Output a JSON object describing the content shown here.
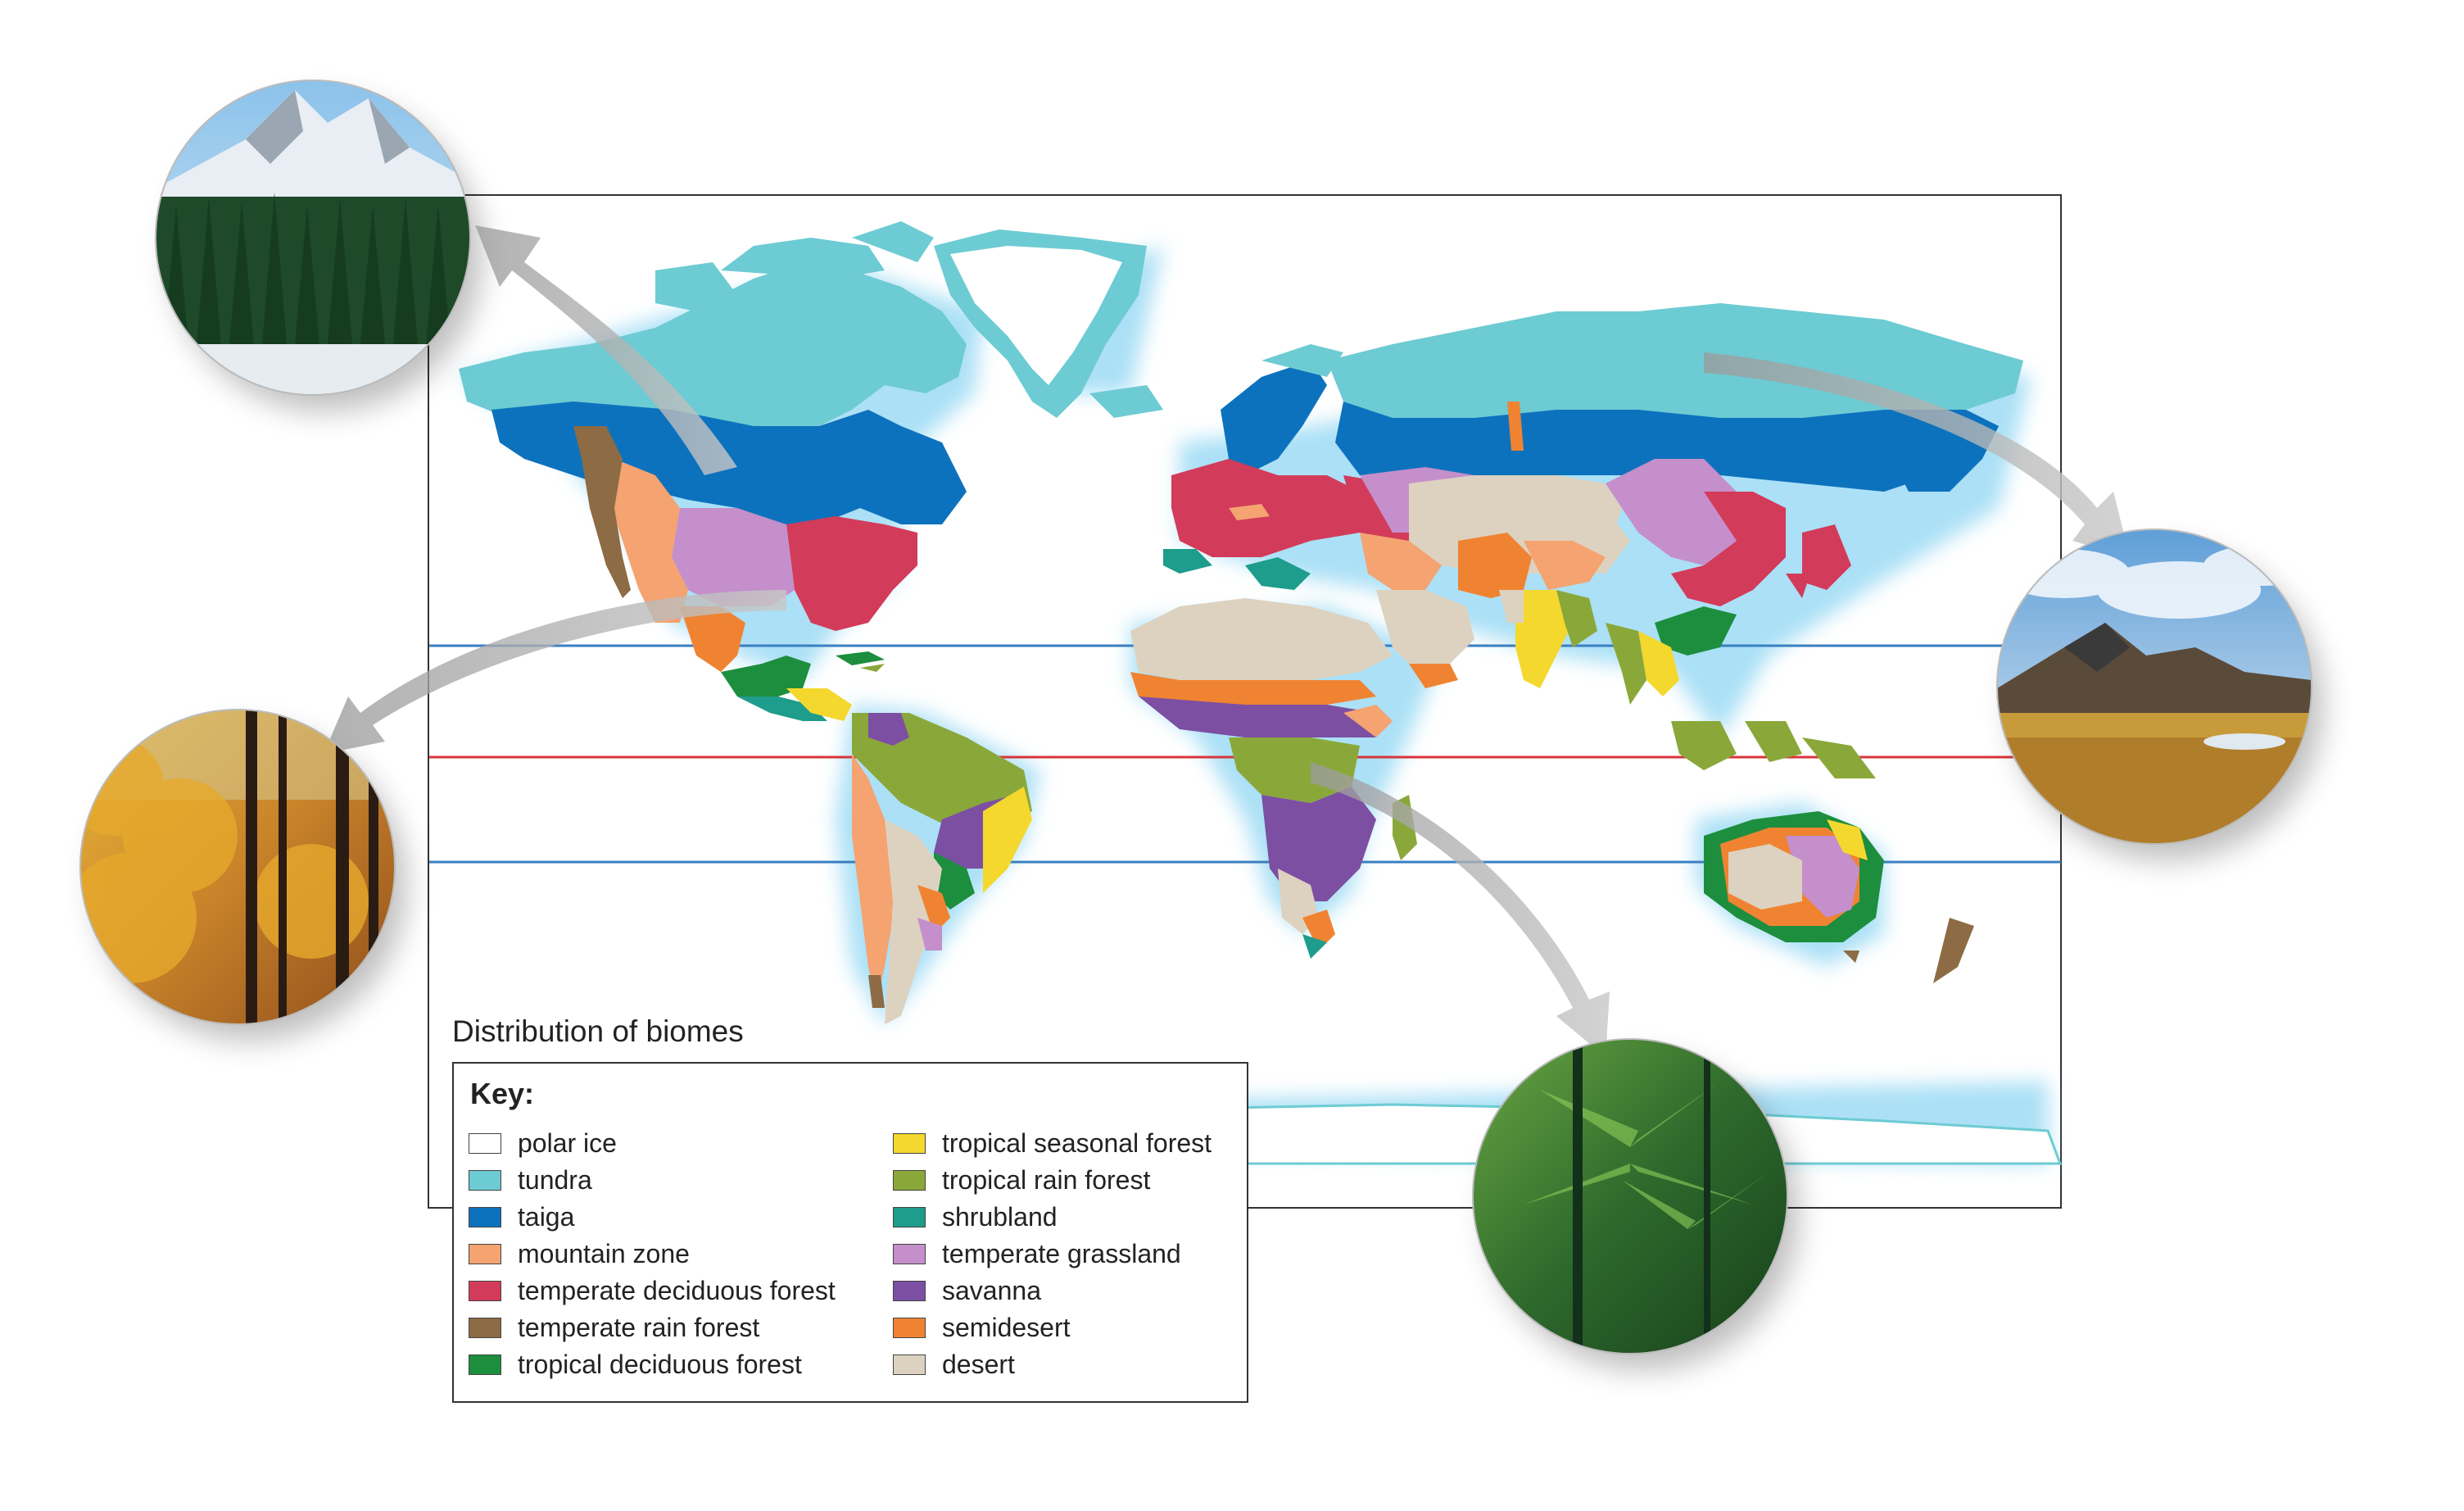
{
  "caption": "Distribution of biomes",
  "key": {
    "title": "Key:",
    "items": [
      {
        "label": "polar ice",
        "color": "#ffffff"
      },
      {
        "label": "tundra",
        "color": "#6dcbd3"
      },
      {
        "label": "taiga",
        "color": "#0d72bd"
      },
      {
        "label": "mountain zone",
        "color": "#f4a371"
      },
      {
        "label": "temperate deciduous forest",
        "color": "#d33b5a"
      },
      {
        "label": "temperate rain forest",
        "color": "#8d6b44"
      },
      {
        "label": "tropical deciduous forest",
        "color": "#1c8e3e"
      },
      {
        "label": "tropical seasonal forest",
        "color": "#f5d82e"
      },
      {
        "label": "tropical rain forest",
        "color": "#8aa83a"
      },
      {
        "label": "shrubland",
        "color": "#1e9c8c"
      },
      {
        "label": "temperate grassland",
        "color": "#c48fcb"
      },
      {
        "label": "savanna",
        "color": "#7c4fa3"
      },
      {
        "label": "semidesert",
        "color": "#f08332"
      },
      {
        "label": "desert",
        "color": "#ddd2c0"
      }
    ]
  },
  "map": {
    "latitude_lines": [
      {
        "name": "tropic-of-cancer",
        "color": "#3a7fc1"
      },
      {
        "name": "equator",
        "color": "#d8343b"
      },
      {
        "name": "tropic-of-capricorn",
        "color": "#3a7fc1"
      }
    ],
    "photos": [
      {
        "name": "taiga-photo",
        "icon": "mountain-forest"
      },
      {
        "name": "temperate-deciduous-forest-photo",
        "icon": "autumn-forest"
      },
      {
        "name": "tundra-photo",
        "icon": "tundra-landscape"
      },
      {
        "name": "tropical-rain-forest-photo",
        "icon": "jungle"
      }
    ]
  }
}
